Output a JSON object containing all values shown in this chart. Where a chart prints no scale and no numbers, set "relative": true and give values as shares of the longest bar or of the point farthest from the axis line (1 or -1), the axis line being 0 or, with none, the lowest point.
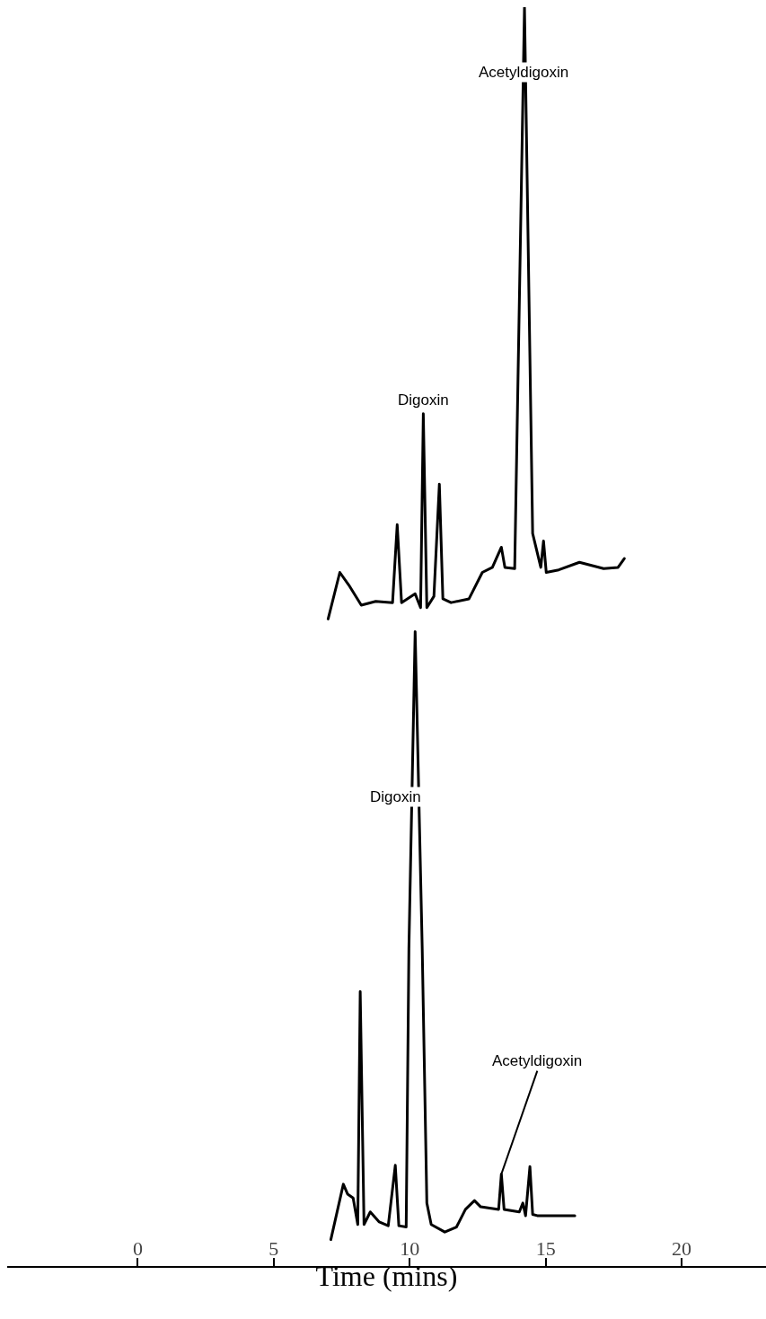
{
  "chart_data": {
    "type": "line",
    "relative": true,
    "tick_labels": "x",
    "xlim": [
      -4.8,
      23.1
    ],
    "xticks": [
      0,
      5,
      10,
      15,
      20
    ],
    "xlabel": "Time (mins)",
    "series": [
      {
        "color": "#000000",
        "x": [
          7.0,
          7.43,
          7.76,
          8.22,
          8.75,
          9.37,
          9.54,
          9.7,
          10.2,
          10.4,
          10.5,
          10.63,
          10.89,
          11.09,
          11.22,
          11.52,
          12.18,
          12.67,
          13.04,
          13.37,
          13.5,
          13.86,
          14.22,
          14.52,
          14.82,
          14.92,
          15.02,
          15.48,
          16.24,
          17.13,
          17.66,
          17.89
        ],
        "values": [
          0.514,
          0.551,
          0.541,
          0.525,
          0.528,
          0.527,
          0.589,
          0.527,
          0.534,
          0.523,
          0.677,
          0.523,
          0.532,
          0.621,
          0.53,
          0.527,
          0.53,
          0.551,
          0.555,
          0.571,
          0.555,
          0.554,
          1,
          0.582,
          0.555,
          0.576,
          0.551,
          0.553,
          0.559,
          0.554,
          0.555,
          0.562
        ]
      },
      {
        "color": "#000000",
        "x": [
          7.1,
          7.56,
          7.72,
          7.92,
          8.09,
          8.18,
          8.32,
          8.55,
          8.88,
          9.21,
          9.47,
          9.6,
          9.87,
          9.97,
          10.2,
          10.46,
          10.63,
          10.79,
          11.29,
          11.72,
          12.05,
          12.38,
          12.61,
          13.27,
          13.37,
          13.47,
          14.03,
          14.16,
          14.26,
          14.42,
          14.52,
          14.69,
          16.07
        ],
        "values": [
          0.021,
          0.065,
          0.057,
          0.054,
          0.033,
          0.218,
          0.033,
          0.043,
          0.035,
          0.032,
          0.08,
          0.032,
          0.031,
          0.252,
          0.504,
          0.252,
          0.05,
          0.033,
          0.027,
          0.031,
          0.045,
          0.052,
          0.047,
          0.045,
          0.073,
          0.045,
          0.043,
          0.05,
          0.04,
          0.079,
          0.041,
          0.04,
          0.04
        ]
      }
    ],
    "annotations": [
      {
        "text": "Digoxin",
        "x": 10.5,
        "y": 0.677
      },
      "Acetyldigoxin",
      "Digoxin",
      {
        "text": "Acetyldigoxin",
        "x": 13.37,
        "y": 0.073
      }
    ]
  }
}
